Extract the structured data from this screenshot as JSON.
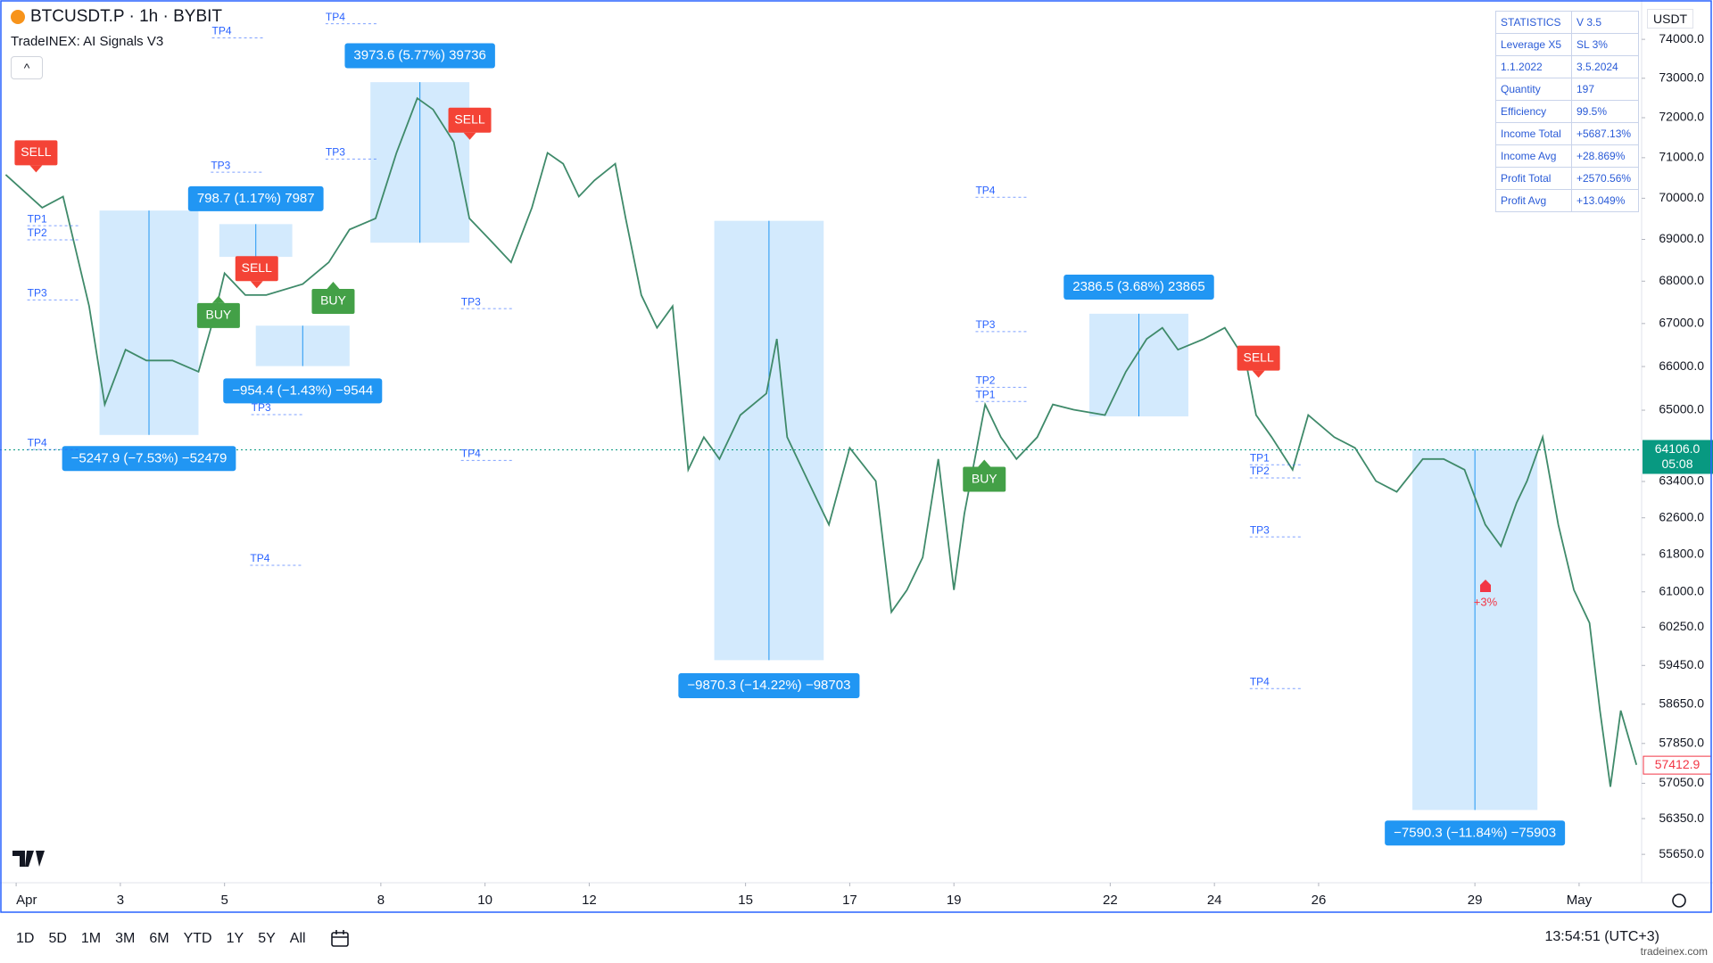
{
  "header": {
    "symbol_line": "BTCUSDT.P · 1h · BYBIT",
    "indicator": "TradeINEX: AI Signals V3",
    "currency": "USDT"
  },
  "statistics": {
    "rows": [
      [
        "STATISTICS",
        "V 3.5"
      ],
      [
        "Leverage X5",
        "SL 3%"
      ],
      [
        "1.1.2022",
        "3.5.2024"
      ],
      [
        "Quantity",
        "197"
      ],
      [
        "Efficiency",
        "99.5%"
      ],
      [
        "Income Total",
        "+5687.13%"
      ],
      [
        "Income Avg",
        "+28.869%"
      ],
      [
        "Profit Total",
        "+2570.56%"
      ],
      [
        "Profit Avg",
        "+13.049%"
      ]
    ]
  },
  "toolbar": {
    "ranges": [
      "1D",
      "5D",
      "1M",
      "3M",
      "6M",
      "YTD",
      "1Y",
      "5Y",
      "All"
    ],
    "clock": "13:54:51 (UTC+3)",
    "watermark": "tradeinex.com"
  },
  "chart_data": {
    "type": "line",
    "log_scale": true,
    "color": "#3f8a6a",
    "xlim": [
      -0.31,
      31.2
    ],
    "xticks": [
      {
        "value": 0,
        "label": "Apr"
      },
      {
        "value": 2,
        "label": "3"
      },
      {
        "value": 4,
        "label": "5"
      },
      {
        "value": 7,
        "label": "8"
      },
      {
        "value": 9,
        "label": "10"
      },
      {
        "value": 11,
        "label": "12"
      },
      {
        "value": 14,
        "label": "15"
      },
      {
        "value": 16,
        "label": "17"
      },
      {
        "value": 18,
        "label": "19"
      },
      {
        "value": 21,
        "label": "22"
      },
      {
        "value": 23,
        "label": "24"
      },
      {
        "value": 25,
        "label": "26"
      },
      {
        "value": 28,
        "label": "29"
      },
      {
        "value": 30,
        "label": "May"
      }
    ],
    "ylim": [
      55100,
      75025
    ],
    "yticks": [
      {
        "value": 74000,
        "label": "74000.0"
      },
      {
        "value": 73000,
        "label": "73000.0"
      },
      {
        "value": 72000,
        "label": "72000.0"
      },
      {
        "value": 71000,
        "label": "71000.0"
      },
      {
        "value": 70000,
        "label": "70000.0"
      },
      {
        "value": 69000,
        "label": "69000.0"
      },
      {
        "value": 68000,
        "label": "68000.0"
      },
      {
        "value": 67000,
        "label": "67000.0"
      },
      {
        "value": 66000,
        "label": "66000.0"
      },
      {
        "value": 65000,
        "label": "65000.0"
      },
      {
        "value": 63400,
        "label": "63400.0"
      },
      {
        "value": 62600,
        "label": "62600.0"
      },
      {
        "value": 61800,
        "label": "61800.0"
      },
      {
        "value": 61000,
        "label": "61000.0"
      },
      {
        "value": 60250,
        "label": "60250.0"
      },
      {
        "value": 59450,
        "label": "59450.0"
      },
      {
        "value": 58650,
        "label": "58650.0"
      },
      {
        "value": 57850,
        "label": "57850.0"
      },
      {
        "value": 57050,
        "label": "57050.0"
      },
      {
        "value": 56350,
        "label": "56350.0"
      },
      {
        "value": 55650,
        "label": "55650.0"
      }
    ],
    "x": [
      -0.2,
      0.5,
      0.9,
      1.4,
      1.7,
      2.1,
      2.5,
      3.0,
      3.5,
      3.8,
      4.0,
      4.4,
      4.8,
      5.5,
      6.0,
      6.4,
      6.9,
      7.3,
      7.7,
      8.0,
      8.4,
      8.7,
      9.1,
      9.5,
      9.9,
      10.2,
      10.5,
      10.8,
      11.1,
      11.5,
      11.7,
      12.0,
      12.3,
      12.6,
      12.9,
      13.2,
      13.5,
      13.9,
      14.4,
      14.6,
      14.8,
      15.2,
      15.6,
      16.0,
      16.5,
      16.8,
      17.1,
      17.4,
      17.7,
      18.0,
      18.2,
      18.6,
      18.9,
      19.2,
      19.6,
      19.9,
      20.3,
      20.9,
      21.3,
      21.7,
      22.0,
      22.3,
      22.8,
      23.2,
      23.6,
      23.8,
      24.1,
      24.5,
      24.8,
      25.3,
      25.7,
      26.1,
      26.5,
      27.0,
      27.4,
      27.8,
      28.2,
      28.5,
      28.8,
      29.0,
      29.3,
      29.6,
      29.9,
      30.2,
      30.4,
      30.6,
      30.8,
      31.1
    ],
    "values": [
      70580,
      69770,
      70040,
      67410,
      65130,
      66390,
      66140,
      66140,
      65880,
      67160,
      68190,
      67670,
      67670,
      67930,
      68450,
      69240,
      69510,
      71120,
      72490,
      72210,
      71390,
      69510,
      68980,
      68450,
      69770,
      71120,
      70850,
      70040,
      70440,
      70850,
      69510,
      67670,
      66900,
      67410,
      63660,
      64390,
      63900,
      64890,
      65380,
      66640,
      64390,
      63410,
      62450,
      64150,
      63410,
      60570,
      61040,
      61740,
      63900,
      61040,
      62690,
      65130,
      64390,
      63900,
      64390,
      65130,
      65010,
      64890,
      65880,
      66640,
      66900,
      66390,
      66640,
      66900,
      66140,
      64890,
      64390,
      63660,
      64890,
      64390,
      64150,
      63410,
      63170,
      63900,
      63900,
      63660,
      62450,
      61980,
      62930,
      63410,
      64390,
      62450,
      61040,
      60340,
      58520,
      56980,
      58520,
      57420
    ],
    "trades": [
      {
        "label": "−5247.9 (−7.53%) −52479",
        "start": 1.6,
        "end": 3.5,
        "entry": 69700,
        "exit": 64440
      },
      {
        "label": "798.7 (1.17%) 7987",
        "start": 3.9,
        "end": 5.3,
        "entry": 68580,
        "exit": 69370
      },
      {
        "label": "−954.4 (−1.43%) −9544",
        "start": 4.6,
        "end": 6.4,
        "entry": 66950,
        "exit": 66010
      },
      {
        "label": "3973.6 (5.77%) 39736",
        "start": 6.8,
        "end": 8.7,
        "entry": 68920,
        "exit": 72900
      },
      {
        "label": "−9870.3 (−14.22%) −98703",
        "start": 13.4,
        "end": 15.5,
        "entry": 69450,
        "exit": 59560
      },
      {
        "label": "2386.5 (3.68%) 23865",
        "start": 20.6,
        "end": 22.5,
        "entry": 64860,
        "exit": 67230
      },
      {
        "label": "−7590.3 (−11.84%) −75903",
        "start": 26.8,
        "end": 29.2,
        "entry": 64120,
        "exit": 56520
      }
    ],
    "signals": [
      "SELL",
      "BUY",
      "SELL",
      "BUY",
      "SELL",
      "BUY",
      "SELL"
    ],
    "tp_labels": [
      "TP4",
      "TP4",
      "TP3",
      "TP3",
      "TP1",
      "TP2",
      "TP3",
      "TP4",
      "TP3",
      "TP4",
      "TP4",
      "TP3",
      "TP4",
      "TP3",
      "TP2",
      "TP1",
      "TP3",
      "TP4",
      "TP2",
      "TP1"
    ],
    "annotation": "+3%",
    "price_tags": [
      {
        "value": 64106,
        "label": "64106.0",
        "sublabel": "05:08",
        "color": "#089981"
      },
      {
        "value": 57412.9,
        "color": "#f23645"
      }
    ]
  }
}
